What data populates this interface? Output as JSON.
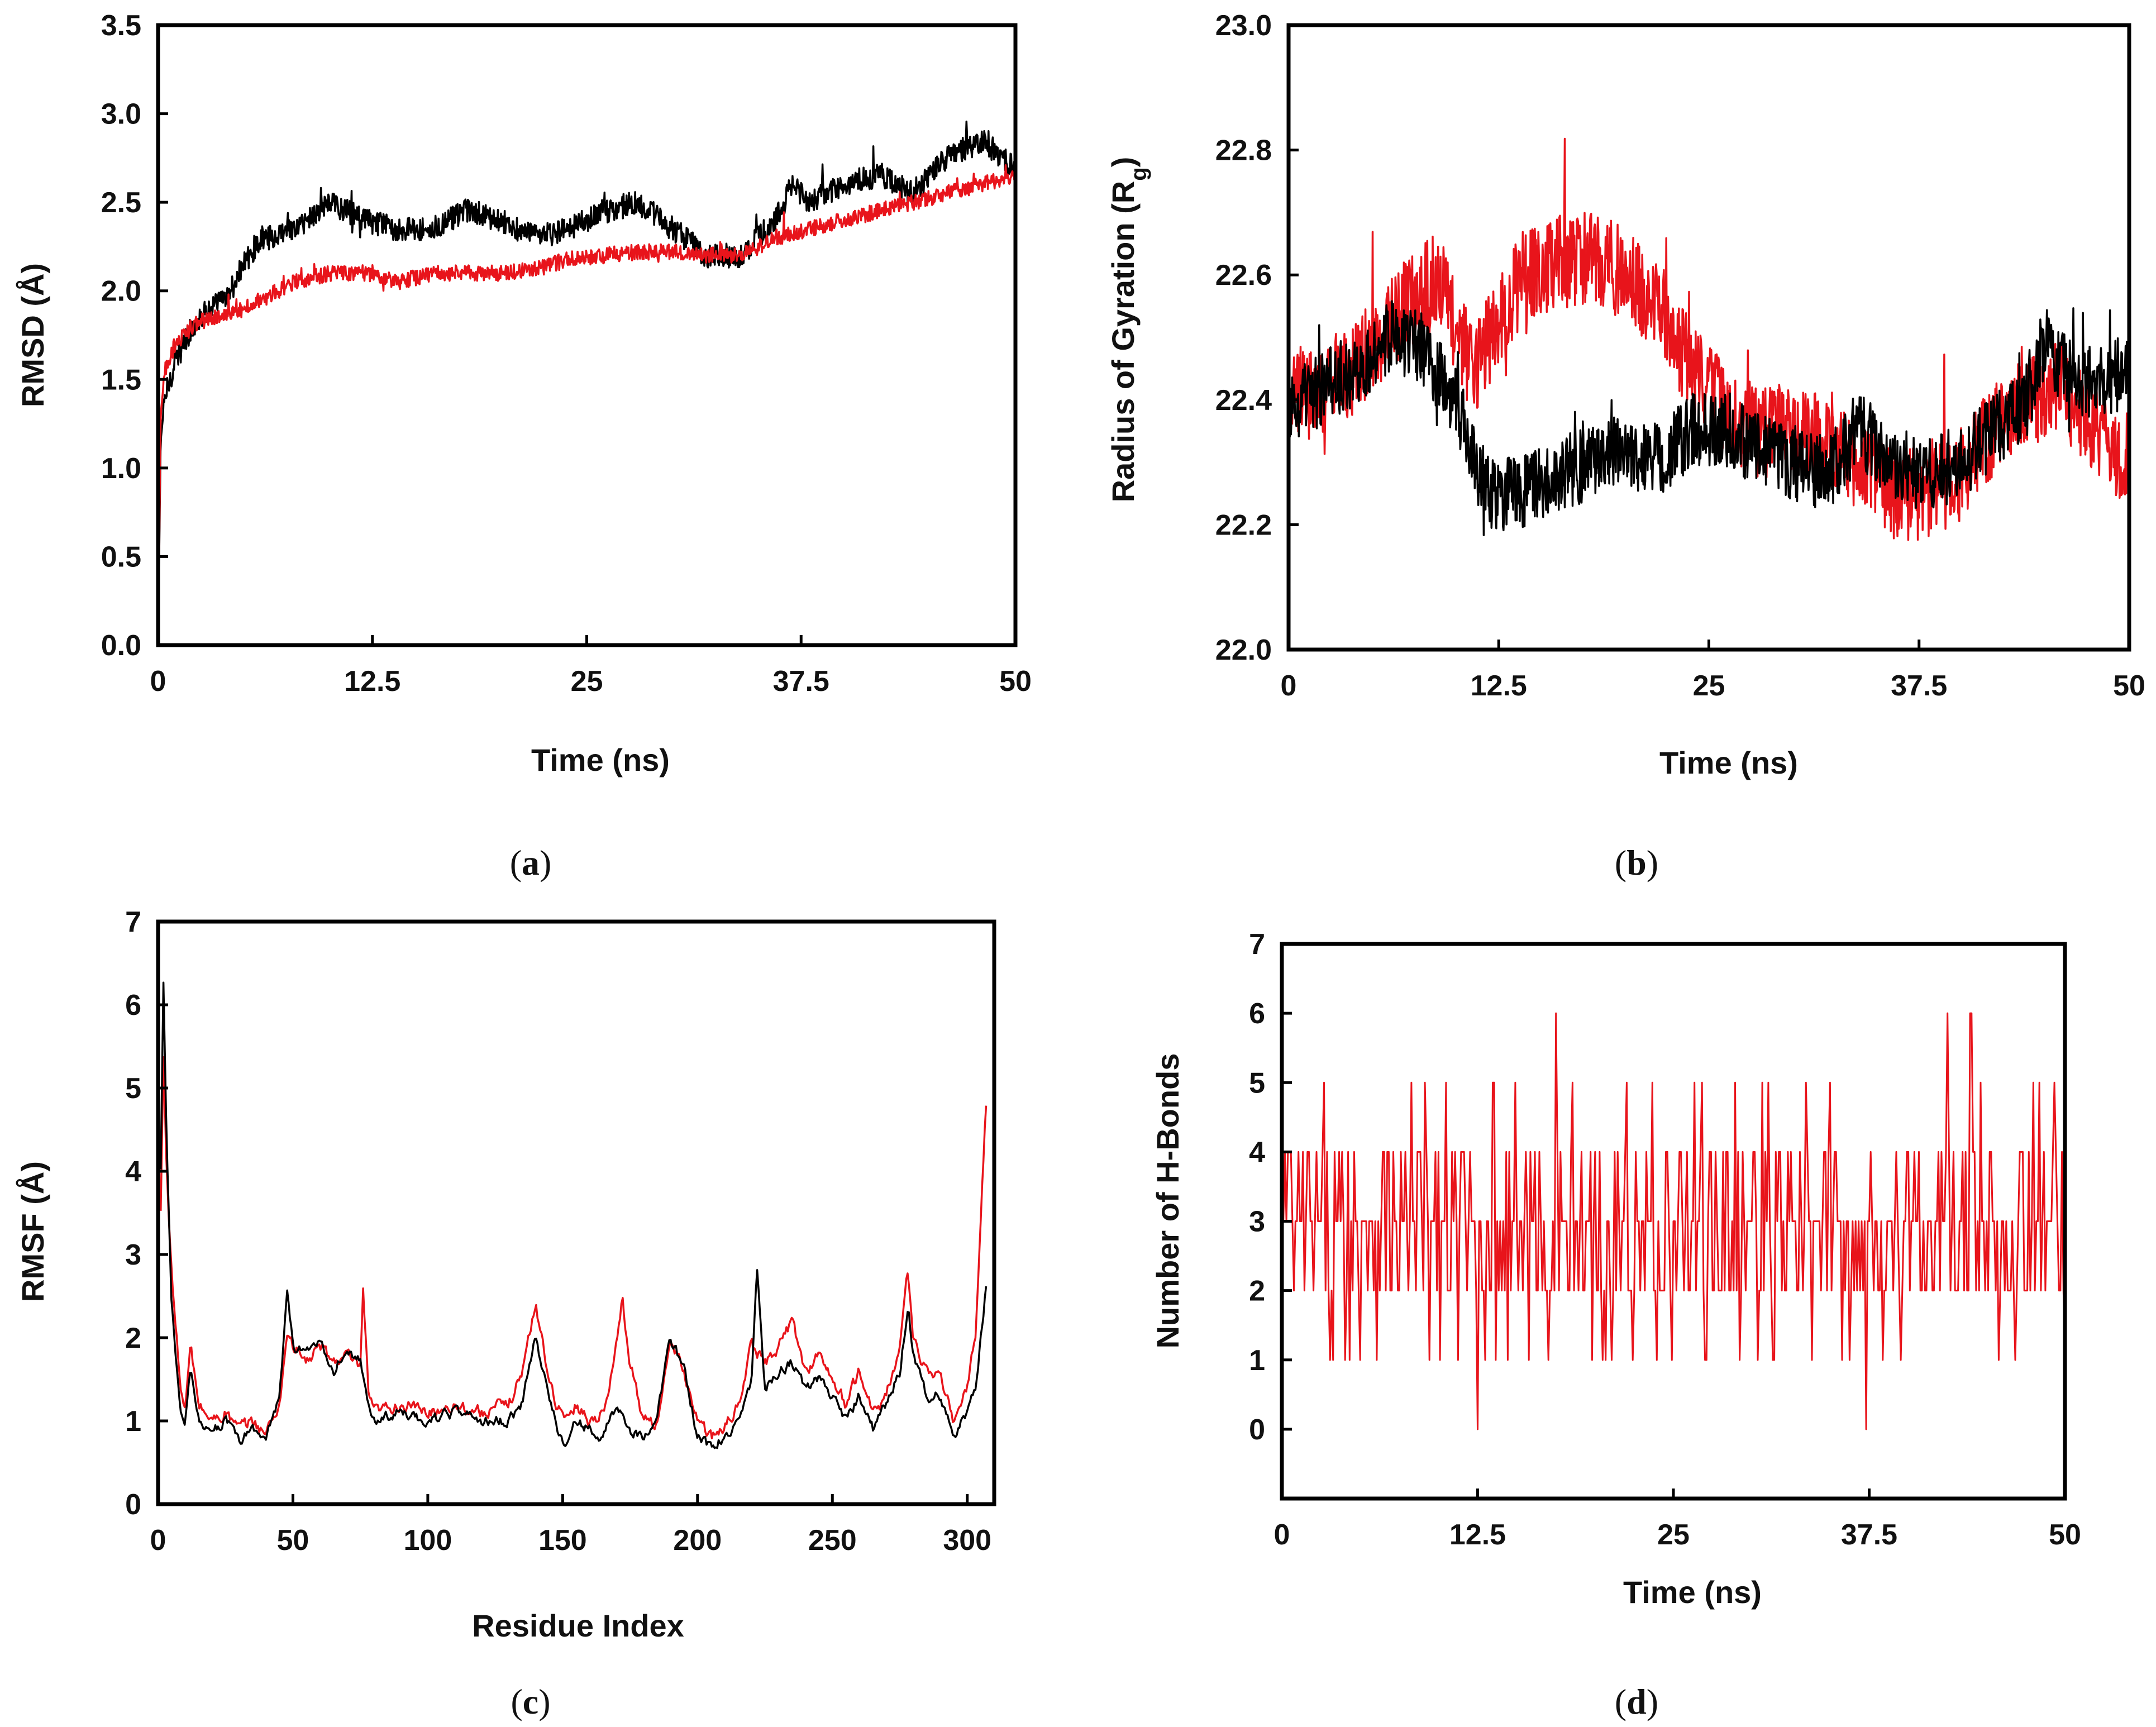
{
  "chart_data": [
    {
      "id": "a",
      "type": "line",
      "panel_label": "a",
      "xlabel": "Time (ns)",
      "ylabel": "RMSD (Å)",
      "xlim": [
        0,
        50
      ],
      "ylim": [
        0,
        3.5
      ],
      "xticks": [
        "0",
        "12.5",
        "25",
        "37.5",
        "50"
      ],
      "xtick_values": [
        0,
        12.5,
        25,
        37.5,
        50
      ],
      "yticks": [
        "0.0",
        "0.5",
        "1.0",
        "1.5",
        "2.0",
        "2.5",
        "3.0",
        "3.5"
      ],
      "ytick_values": [
        0,
        0.5,
        1,
        1.5,
        2,
        2.5,
        3,
        3.5
      ],
      "noise": "jitter",
      "series": [
        {
          "name": "black",
          "color": "#000000",
          "x": [
            0,
            0.15,
            0.4,
            1,
            2,
            3,
            4,
            5,
            6,
            7,
            8,
            10,
            12,
            14,
            16,
            18,
            20,
            22,
            24,
            26,
            28,
            30,
            32,
            34,
            36,
            37,
            38,
            40,
            42,
            44,
            46,
            48,
            50
          ],
          "values": [
            0,
            1.15,
            1.4,
            1.6,
            1.8,
            1.9,
            1.95,
            2.15,
            2.3,
            2.3,
            2.35,
            2.5,
            2.4,
            2.35,
            2.35,
            2.45,
            2.4,
            2.3,
            2.35,
            2.45,
            2.5,
            2.35,
            2.2,
            2.2,
            2.4,
            2.6,
            2.5,
            2.6,
            2.65,
            2.55,
            2.75,
            2.85,
            2.7
          ],
          "noise_amp": 0.07
        },
        {
          "name": "red",
          "color": "#e8141b",
          "x": [
            0,
            0.15,
            0.4,
            1,
            2,
            3,
            4,
            6,
            8,
            10,
            12,
            14,
            16,
            18,
            20,
            22,
            24,
            26,
            28,
            30,
            32,
            34,
            36,
            38,
            40,
            42,
            44,
            46,
            48,
            50
          ],
          "values": [
            0,
            1.3,
            1.55,
            1.7,
            1.8,
            1.85,
            1.85,
            1.95,
            2.05,
            2.1,
            2.1,
            2.05,
            2.1,
            2.1,
            2.1,
            2.12,
            2.18,
            2.2,
            2.22,
            2.22,
            2.2,
            2.2,
            2.3,
            2.35,
            2.4,
            2.45,
            2.5,
            2.55,
            2.6,
            2.65
          ],
          "noise_amp": 0.045
        }
      ]
    },
    {
      "id": "b",
      "type": "line",
      "panel_label": "b",
      "xlabel": "Time (ns)",
      "ylabel": "Radius of Gyration (R",
      "ylabel_sub": "g",
      "ylabel_close": ")",
      "xlim": [
        0,
        50
      ],
      "ylim": [
        22.0,
        23.0
      ],
      "xticks": [
        "0",
        "12.5",
        "25",
        "37.5",
        "50"
      ],
      "xtick_values": [
        0,
        12.5,
        25,
        37.5,
        50
      ],
      "yticks": [
        "22.0",
        "22.2",
        "22.4",
        "22.6",
        "22.8",
        "23.0"
      ],
      "ytick_values": [
        22.0,
        22.2,
        22.4,
        22.6,
        22.8,
        23.0
      ],
      "noise": "jitter",
      "series": [
        {
          "name": "red",
          "color": "#e8141b",
          "x": [
            0,
            2,
            4,
            6,
            8,
            9,
            10,
            11,
            12,
            13,
            14,
            16,
            18,
            20,
            22,
            24,
            26,
            28,
            30,
            32,
            34,
            36,
            38,
            40,
            42,
            44,
            46,
            48,
            50
          ],
          "values": [
            22.4,
            22.42,
            22.45,
            22.52,
            22.58,
            22.6,
            22.5,
            22.45,
            22.5,
            22.55,
            22.6,
            22.62,
            22.63,
            22.6,
            22.55,
            22.45,
            22.38,
            22.35,
            22.35,
            22.33,
            22.3,
            22.25,
            22.25,
            22.28,
            22.35,
            22.4,
            22.42,
            22.35,
            22.3
          ],
          "noise_amp": 0.075
        },
        {
          "name": "black",
          "color": "#000000",
          "x": [
            0,
            2,
            4,
            6,
            8,
            10,
            11,
            12,
            14,
            16,
            18,
            20,
            22,
            24,
            26,
            28,
            30,
            32,
            34,
            36,
            38,
            40,
            42,
            44,
            45,
            46,
            48,
            50
          ],
          "values": [
            22.38,
            22.42,
            22.45,
            22.5,
            22.48,
            22.4,
            22.3,
            22.25,
            22.25,
            22.28,
            22.3,
            22.32,
            22.3,
            22.35,
            22.35,
            22.32,
            22.3,
            22.28,
            22.35,
            22.3,
            22.28,
            22.3,
            22.35,
            22.4,
            22.5,
            22.45,
            22.42,
            22.45
          ],
          "noise_amp": 0.06
        }
      ]
    },
    {
      "id": "c",
      "type": "line",
      "panel_label": "c",
      "xlabel": "Residue Index",
      "ylabel": "RMSF (Å)",
      "xlim": [
        0,
        310
      ],
      "ylim": [
        0,
        7
      ],
      "xticks": [
        "0",
        "50",
        "100",
        "150",
        "200",
        "250",
        "300"
      ],
      "xtick_values": [
        0,
        50,
        100,
        150,
        200,
        250,
        300
      ],
      "yticks": [
        "0",
        "1",
        "2",
        "3",
        "4",
        "5",
        "6",
        "7"
      ],
      "ytick_values": [
        0,
        1,
        2,
        3,
        4,
        5,
        6,
        7
      ],
      "noise": "smooth",
      "series": [
        {
          "name": "red",
          "color": "#e8141b",
          "x": [
            1,
            2,
            3,
            5,
            8,
            10,
            12,
            15,
            20,
            25,
            30,
            35,
            40,
            45,
            48,
            50,
            55,
            60,
            65,
            70,
            75,
            76,
            78,
            80,
            90,
            100,
            110,
            120,
            130,
            135,
            140,
            145,
            150,
            155,
            160,
            165,
            170,
            172,
            175,
            180,
            185,
            190,
            195,
            200,
            205,
            210,
            215,
            220,
            225,
            230,
            235,
            240,
            245,
            250,
            255,
            260,
            265,
            270,
            275,
            278,
            280,
            285,
            290,
            295,
            300,
            303,
            305,
            307
          ],
          "values": [
            3.5,
            5.4,
            4.2,
            2.8,
            1.5,
            1.1,
            1.9,
            1.2,
            1.0,
            1.1,
            0.9,
            1.0,
            0.85,
            1.2,
            2.1,
            1.9,
            1.7,
            1.9,
            1.7,
            1.8,
            1.6,
            2.6,
            1.3,
            1.1,
            1.2,
            1.1,
            1.2,
            1.1,
            1.2,
            1.6,
            2.4,
            1.5,
            1.0,
            1.2,
            1.0,
            1.1,
            1.9,
            2.5,
            1.7,
            1.0,
            1.0,
            1.9,
            1.6,
            1.0,
            0.8,
            0.9,
            1.2,
            1.9,
            1.7,
            1.9,
            2.2,
            1.6,
            1.8,
            1.5,
            1.2,
            1.6,
            1.1,
            1.3,
            1.9,
            2.8,
            2.0,
            1.6,
            1.5,
            1.0,
            1.4,
            2.0,
            3.5,
            4.8
          ],
          "noise_amp": 0.14
        },
        {
          "name": "black",
          "color": "#000000",
          "x": [
            1,
            2,
            3,
            5,
            8,
            10,
            12,
            15,
            20,
            25,
            30,
            35,
            40,
            45,
            48,
            50,
            55,
            60,
            65,
            70,
            75,
            78,
            80,
            90,
            100,
            110,
            120,
            130,
            135,
            140,
            145,
            150,
            155,
            160,
            165,
            170,
            175,
            180,
            185,
            190,
            195,
            200,
            205,
            210,
            215,
            220,
            222,
            225,
            230,
            235,
            240,
            245,
            250,
            255,
            260,
            265,
            270,
            275,
            278,
            280,
            285,
            290,
            295,
            300,
            303,
            305,
            307
          ],
          "values": [
            4.0,
            6.3,
            4.6,
            2.4,
            1.2,
            0.9,
            1.6,
            1.0,
            0.9,
            1.0,
            0.75,
            0.9,
            0.8,
            1.3,
            2.6,
            1.9,
            1.8,
            2.0,
            1.6,
            1.9,
            1.7,
            1.2,
            1.0,
            1.1,
            1.0,
            1.1,
            1.0,
            1.0,
            1.2,
            2.0,
            1.3,
            0.7,
            1.0,
            0.9,
            0.8,
            1.2,
            0.9,
            0.8,
            1.1,
            2.0,
            1.6,
            0.8,
            0.7,
            0.8,
            1.0,
            1.5,
            2.9,
            1.4,
            1.6,
            1.7,
            1.4,
            1.5,
            1.3,
            1.0,
            1.3,
            0.9,
            1.2,
            1.6,
            2.4,
            1.8,
            1.3,
            1.3,
            0.8,
            1.1,
            1.4,
            2.0,
            2.6
          ],
          "noise_amp": 0.12
        }
      ]
    },
    {
      "id": "d",
      "type": "line",
      "panel_label": "d",
      "xlabel": "Time (ns)",
      "ylabel": "Number of H-Bonds",
      "xlim": [
        0,
        50
      ],
      "ylim": [
        -1,
        7
      ],
      "xticks": [
        "0",
        "12.5",
        "25",
        "37.5",
        "50"
      ],
      "xtick_values": [
        0,
        12.5,
        25,
        37.5,
        50
      ],
      "yticks": [
        "0",
        "1",
        "2",
        "3",
        "4",
        "5",
        "6",
        "7"
      ],
      "ytick_values": [
        0,
        1,
        2,
        3,
        4,
        5,
        6,
        7
      ],
      "noise": "discrete",
      "series": [
        {
          "name": "red",
          "color": "#e8141b",
          "x": [
            0,
            50
          ],
          "values": [
            3,
            3
          ],
          "levels": [
            1,
            2,
            3,
            4,
            5
          ],
          "level_weights": [
            0.07,
            0.3,
            0.38,
            0.2,
            0.05
          ],
          "spikes": [
            {
              "x": 12.5,
              "value": 0
            },
            {
              "x": 17.5,
              "value": 6
            },
            {
              "x": 37.3,
              "value": 0
            },
            {
              "x": 42.5,
              "value": 6
            },
            {
              "x": 44.0,
              "value": 6
            }
          ],
          "noise_amp": 0
        }
      ]
    }
  ]
}
